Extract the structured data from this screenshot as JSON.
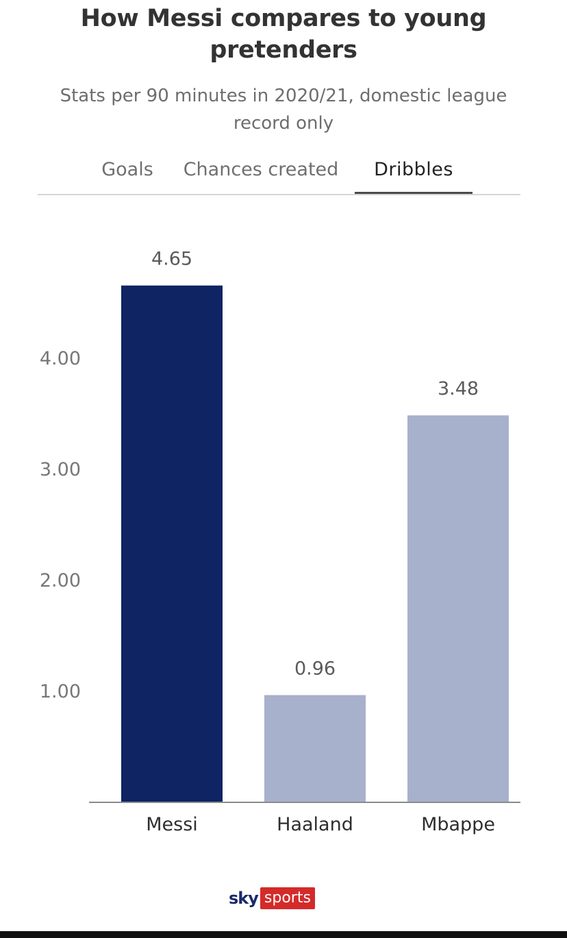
{
  "header": {
    "title": "How Messi compares to young pretenders",
    "subtitle": "Stats per 90 minutes in 2020/21, domestic league record only"
  },
  "tabs": [
    {
      "label": "Goals",
      "active": false
    },
    {
      "label": "Chances created",
      "active": false
    },
    {
      "label": "Dribbles",
      "active": true
    }
  ],
  "chart_data": {
    "type": "bar",
    "categories": [
      "Messi",
      "Haaland",
      "Mbappe"
    ],
    "values": [
      4.65,
      0.96,
      3.48
    ],
    "value_labels": [
      "4.65",
      "0.96",
      "3.48"
    ],
    "ytick_values": [
      1,
      2,
      3,
      4
    ],
    "ytick_labels": [
      "1.00",
      "2.00",
      "3.00",
      "4.00"
    ],
    "ylim": [
      0,
      5
    ],
    "grid": false,
    "colors": [
      "#0e2463",
      "#a8b1cb",
      "#a8b1cb"
    ],
    "highlight_color": "#0e2463",
    "bar_color": "#a8b1cb"
  },
  "branding": {
    "logo_sky": "sky",
    "logo_sports": "sports"
  }
}
